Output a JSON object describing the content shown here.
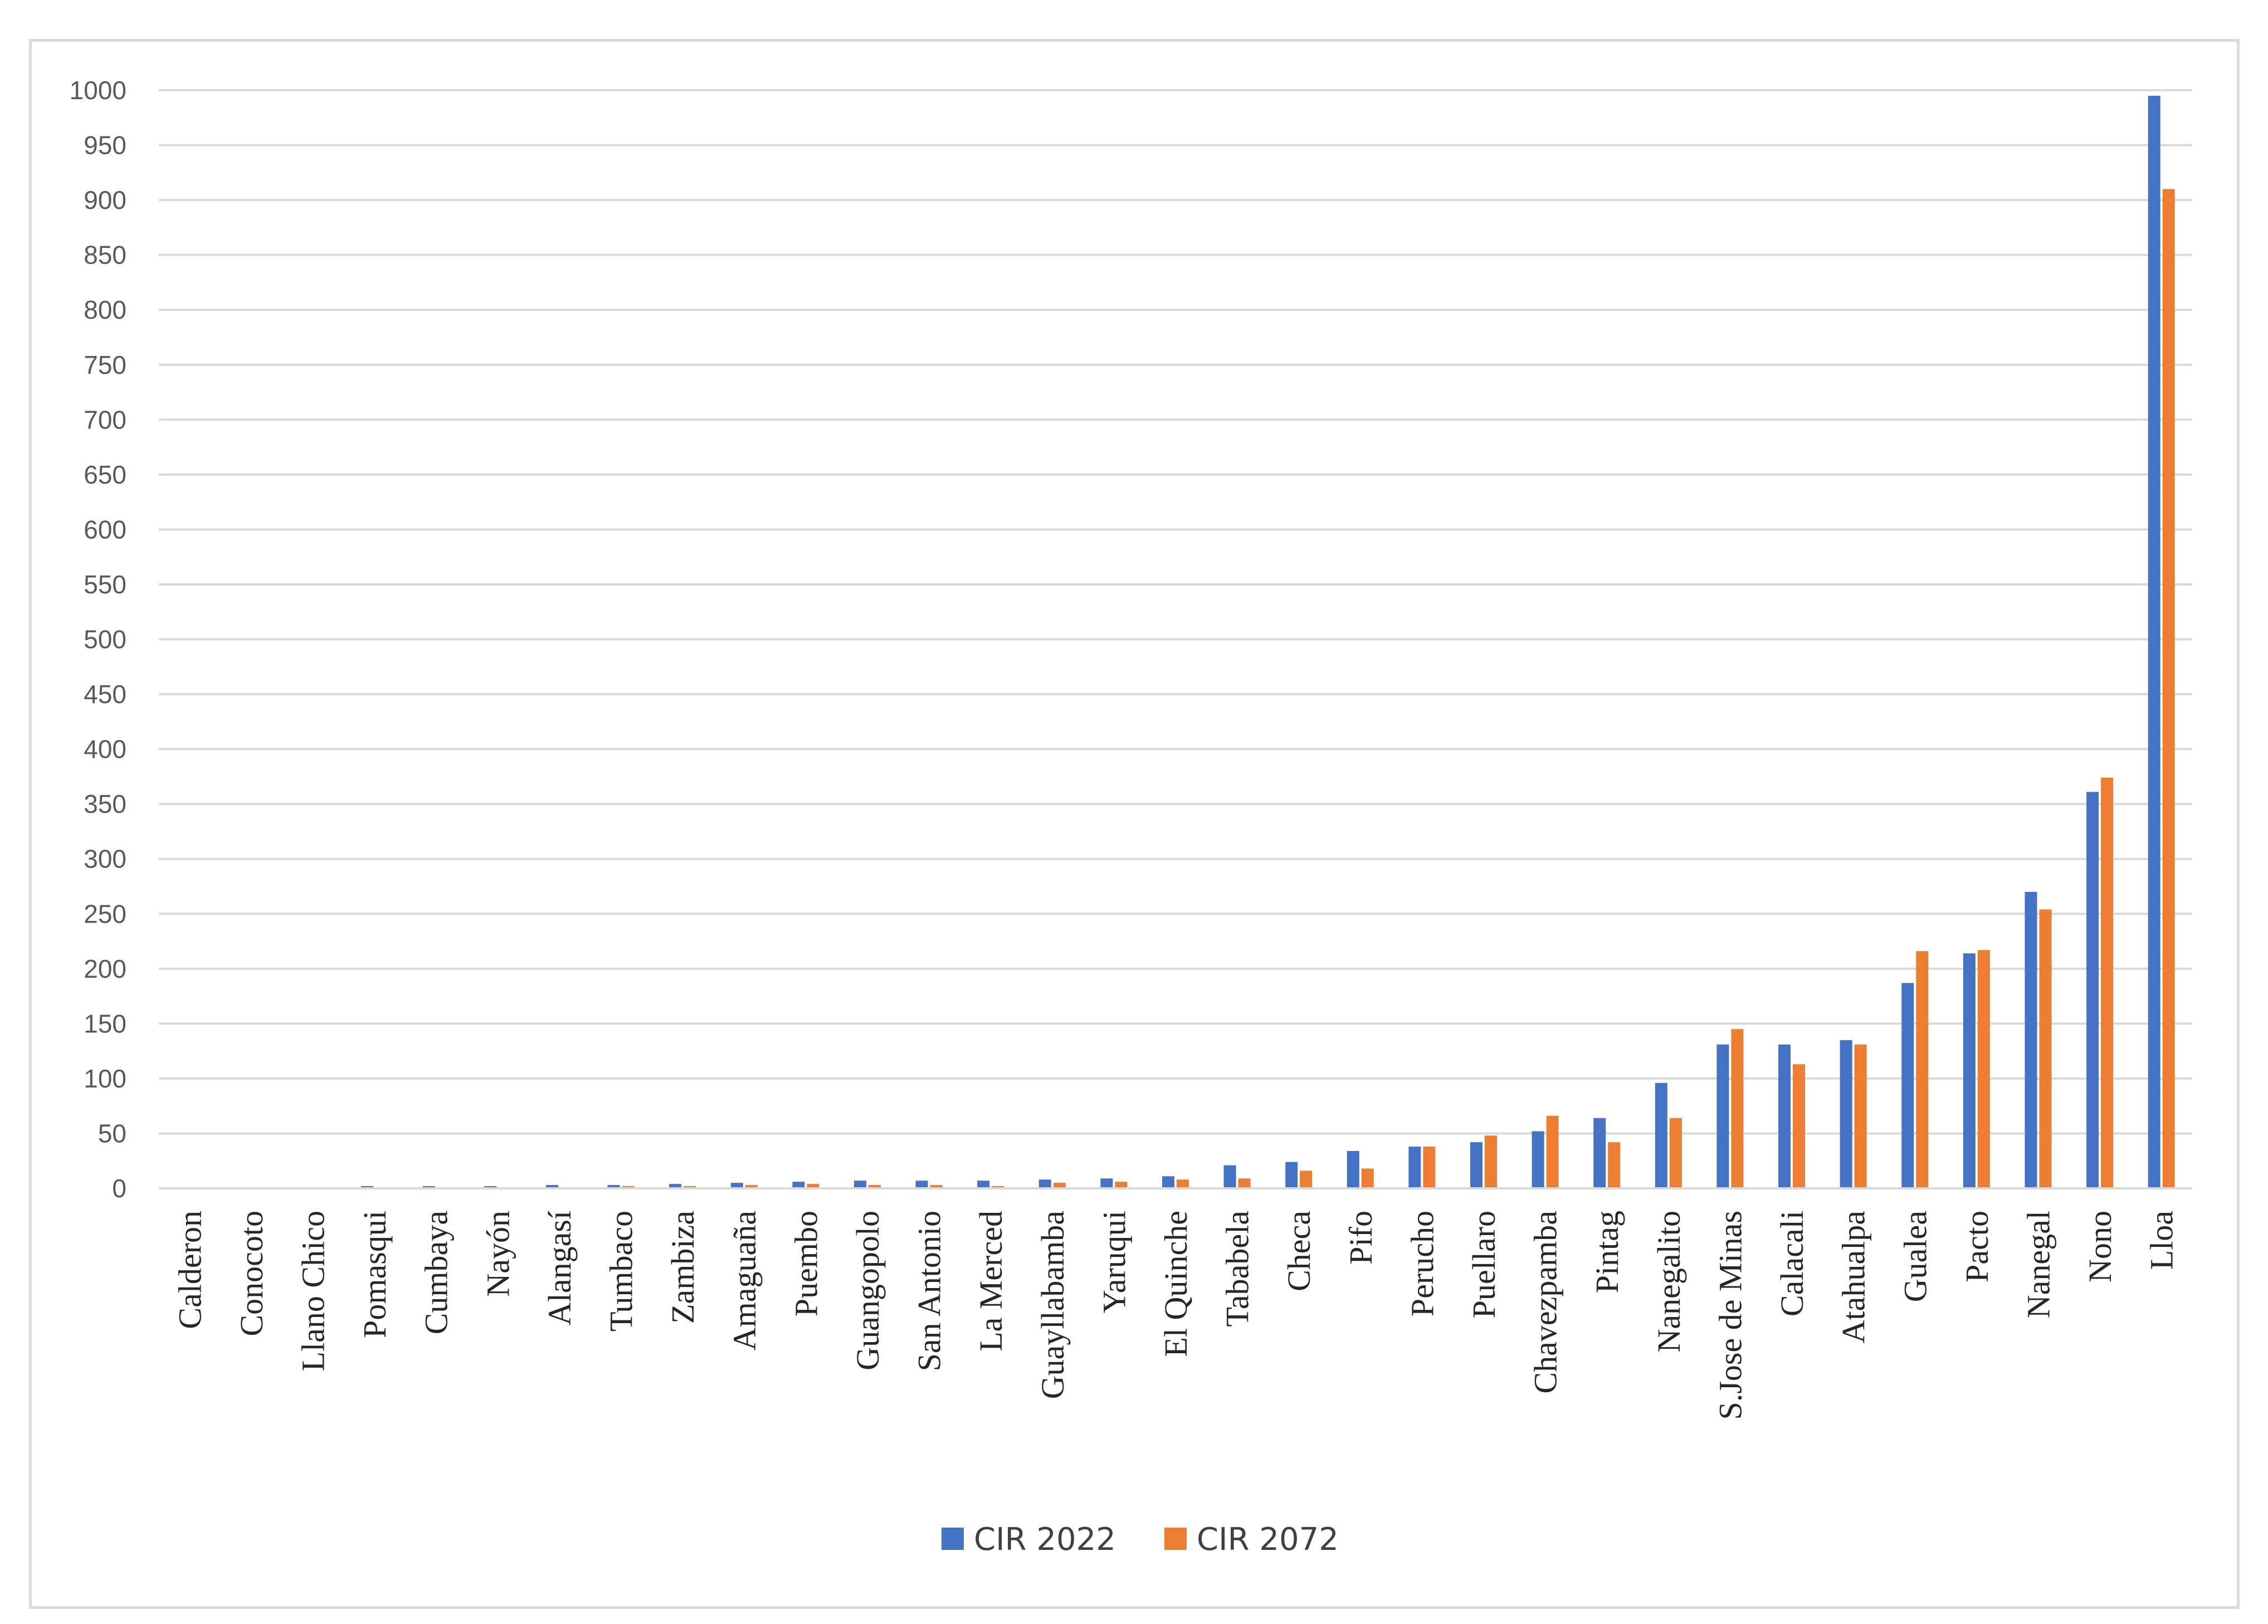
{
  "chart_data": {
    "type": "bar",
    "title": "",
    "xlabel": "",
    "ylabel": "",
    "ylim": [
      0,
      1000
    ],
    "ytick_step": 50,
    "grid": true,
    "legend_placement": "bottom-center",
    "categories": [
      "Calderon",
      "Conocoto",
      "Llano Chico",
      "Pomasqui",
      "Cumbaya",
      "Nayón",
      "Alangasí",
      "Tumbaco",
      "Zambiza",
      "Amaguaña",
      "Puembo",
      "Guangopolo",
      "San Antonio",
      "La Merced",
      "Guayllabamba",
      "Yaruqui",
      "El Quinche",
      "Tababela",
      "Checa",
      "Pifo",
      "Perucho",
      "Puellaro",
      "Chavezpamba",
      "Pintag",
      "Nanegalito",
      "S.Jose de Minas",
      "Calacali",
      "Atahualpa",
      "Gualea",
      "Pacto",
      "Nanegal",
      "Nono",
      "Lloa"
    ],
    "series": [
      {
        "name": "CIR 2022",
        "color": "#4472c4",
        "values": [
          0.5,
          0.8,
          1,
          2,
          2,
          2,
          3,
          3,
          4,
          5,
          6,
          7,
          7,
          7,
          8,
          9,
          11,
          21,
          24,
          34,
          38,
          42,
          52,
          64,
          96,
          131,
          131,
          135,
          187,
          214,
          270,
          361,
          995
        ]
      },
      {
        "name": "CIR 2072",
        "color": "#ed7d31",
        "values": [
          0.3,
          0.5,
          0.5,
          1,
          1,
          1,
          1,
          2,
          2,
          3,
          4,
          3,
          3,
          2,
          5,
          6,
          8,
          9,
          16,
          18,
          38,
          48,
          66,
          42,
          64,
          145,
          113,
          131,
          216,
          217,
          254,
          374,
          910
        ]
      }
    ]
  }
}
